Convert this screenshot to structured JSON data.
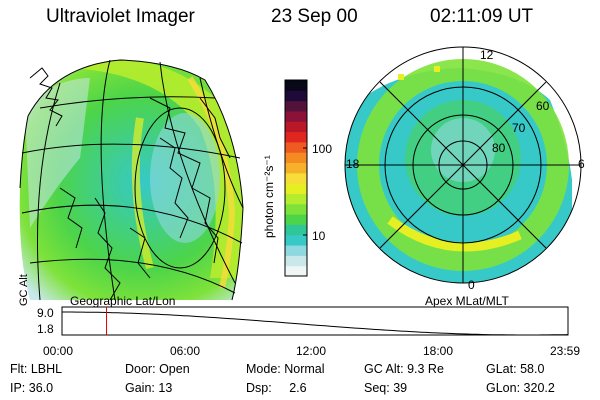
{
  "header": {
    "instrument": "Ultraviolet Imager",
    "date": "23 Sep 00",
    "time": "02:11:09 UT"
  },
  "colorbar": {
    "unit_label": "photon cm⁻²s⁻¹",
    "ticks": [
      "100",
      "10"
    ],
    "colors": [
      "#f0f6f6",
      "#c8e8ea",
      "#8fd8e0",
      "#36c9c8",
      "#2fc79a",
      "#4cd44a",
      "#7ee23a",
      "#b6ec2e",
      "#e6ef22",
      "#f7dc3a",
      "#f6b02a",
      "#f38b22",
      "#ef5a20",
      "#e02620",
      "#b81828",
      "#8a1238",
      "#52123a",
      "#1e0a38",
      "#080818"
    ]
  },
  "panels": {
    "left_label": "Geographic Lat/Lon",
    "right_label": "Apex MLat/MLT",
    "mlt_labels": {
      "top": "12",
      "left": "18",
      "right": "6",
      "bottom": "0"
    },
    "mlat_labels": [
      "60",
      "70",
      "80"
    ]
  },
  "altitude_plot": {
    "axis_label": "GC Alt",
    "y_ticks": [
      "9.0",
      "1.8"
    ],
    "x_ticks": [
      "00:00",
      "06:00",
      "12:00",
      "18:00",
      "23:59"
    ],
    "current_time_fraction": 0.088
  },
  "footer": {
    "row1": [
      {
        "label": "Flt:",
        "value": "LBHL"
      },
      {
        "label": "Door:",
        "value": "Open"
      },
      {
        "label": "Mode:",
        "value": "Normal"
      },
      {
        "label": "GC Alt:",
        "value": "9.3 Re"
      },
      {
        "label": "GLat:",
        "value": "58.0"
      }
    ],
    "row2": [
      {
        "label": "IP:",
        "value": "36.0"
      },
      {
        "label": "Gain:",
        "value": "13"
      },
      {
        "label": "Dsp:",
        "value": "2.6"
      },
      {
        "label": "Seq:",
        "value": "39"
      },
      {
        "label": "GLon:",
        "value": "320.2"
      }
    ]
  }
}
